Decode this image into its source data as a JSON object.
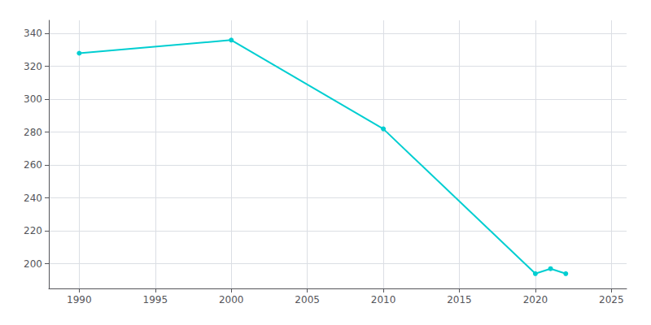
{
  "chart_data": {
    "type": "line",
    "x": [
      1990,
      2000,
      2010,
      2020,
      2021,
      2022
    ],
    "values": [
      328,
      336,
      282,
      194,
      197,
      194
    ],
    "color": "#00CED1",
    "marker": "circle",
    "xlim": [
      1988,
      2026
    ],
    "ylim": [
      185,
      348
    ],
    "xticks": [
      1990,
      1995,
      2000,
      2005,
      2010,
      2015,
      2020,
      2025
    ],
    "yticks": [
      200,
      220,
      240,
      260,
      280,
      300,
      320,
      340
    ],
    "grid": true
  }
}
